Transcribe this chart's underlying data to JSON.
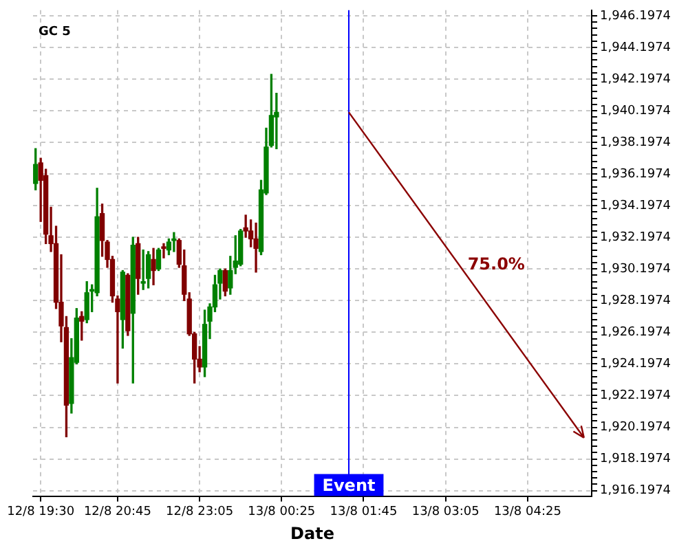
{
  "chart_data": {
    "type": "candlestick",
    "title": "GC 5",
    "xlabel": "Date",
    "categories": [
      null,
      "12/8 19:30",
      null,
      null,
      null,
      null,
      null,
      null,
      null,
      null,
      null,
      null,
      null,
      null,
      null,
      null,
      "12/8 20:45",
      null,
      null,
      null,
      null,
      null,
      null,
      null,
      null,
      null,
      null,
      null,
      null,
      null,
      null,
      null,
      "12/8 23:05",
      null,
      null,
      null,
      null,
      null,
      null,
      null,
      null,
      null,
      null,
      null,
      null,
      null,
      null,
      null,
      "13/8 00:25",
      null,
      null,
      null,
      null,
      null,
      null,
      null,
      null,
      null,
      null,
      null,
      null,
      null,
      null,
      null,
      "13/8 01:45",
      null,
      null,
      null,
      null,
      null,
      null,
      null,
      null,
      null,
      null,
      null,
      null,
      null,
      null,
      null,
      "13/8 03:05",
      null,
      null,
      null,
      null,
      null,
      null,
      null,
      null,
      null,
      null,
      null,
      null,
      null,
      null,
      null,
      "13/8 04:25",
      null,
      null,
      null,
      null,
      null,
      null,
      null,
      null,
      null,
      null,
      null,
      null
    ],
    "ohlc": [
      [
        1935.6,
        1937.8,
        1935.2,
        1936.8
      ],
      [
        1936.9,
        1937.2,
        1933.2,
        1935.8
      ],
      [
        1936.1,
        1936.5,
        1931.8,
        1932.4
      ],
      [
        1932.3,
        1934.1,
        1931.3,
        1931.8
      ],
      [
        1931.8,
        1932.9,
        1927.7,
        1928.1
      ],
      [
        1928.1,
        1931.1,
        1925.6,
        1926.6
      ],
      [
        1926.5,
        1927.2,
        1919.6,
        1921.6
      ],
      [
        1921.7,
        1925.8,
        1921.1,
        1924.6
      ],
      [
        1924.3,
        1927.7,
        1924.2,
        1927.1
      ],
      [
        1927.2,
        1927.5,
        1925.7,
        1926.9
      ],
      [
        1927.0,
        1929.4,
        1926.8,
        1928.7
      ],
      [
        1928.8,
        1929.2,
        1927.5,
        1928.9
      ],
      [
        1928.7,
        1935.3,
        1928.5,
        1933.5
      ],
      [
        1933.7,
        1934.3,
        1931.0,
        1932.0
      ],
      [
        1931.9,
        1932.0,
        1930.3,
        1930.8
      ],
      [
        1930.8,
        1931.0,
        1928.1,
        1928.5
      ],
      [
        1928.3,
        1928.5,
        1923.0,
        1927.5
      ],
      [
        1927.0,
        1930.1,
        1925.2,
        1930.0
      ],
      [
        1929.8,
        1929.9,
        1926.0,
        1926.3
      ],
      [
        1927.4,
        1932.2,
        1923.0,
        1931.7
      ],
      [
        1931.8,
        1932.2,
        1928.6,
        1929.6
      ],
      [
        1929.3,
        1931.4,
        1928.9,
        1929.4
      ],
      [
        1929.6,
        1931.3,
        1929.0,
        1931.1
      ],
      [
        1930.8,
        1931.5,
        1929.2,
        1930.1
      ],
      [
        1930.2,
        1931.5,
        1930.1,
        1931.4
      ],
      [
        1931.6,
        1931.8,
        1930.9,
        1931.5
      ],
      [
        1931.4,
        1932.1,
        1931.1,
        1931.9
      ],
      [
        1932.0,
        1932.5,
        1931.3,
        1932.1
      ],
      [
        1932.0,
        1932.1,
        1930.3,
        1930.5
      ],
      [
        1930.4,
        1931.4,
        1928.2,
        1928.6
      ],
      [
        1928.3,
        1928.7,
        1926.0,
        1926.1
      ],
      [
        1926.1,
        1926.2,
        1923.0,
        1924.5
      ],
      [
        1924.5,
        1925.3,
        1923.7,
        1924.0
      ],
      [
        1924.0,
        1927.6,
        1923.4,
        1926.7
      ],
      [
        1926.9,
        1928.0,
        1925.8,
        1927.8
      ],
      [
        1927.8,
        1929.8,
        1927.5,
        1929.2
      ],
      [
        1929.3,
        1930.2,
        1928.3,
        1930.1
      ],
      [
        1930.1,
        1930.2,
        1928.5,
        1928.8
      ],
      [
        1929.0,
        1931.0,
        1928.6,
        1930.1
      ],
      [
        1930.3,
        1932.3,
        1929.9,
        1930.7
      ],
      [
        1930.5,
        1932.7,
        1930.4,
        1932.6
      ],
      [
        1932.8,
        1933.6,
        1932.2,
        1932.6
      ],
      [
        1932.6,
        1933.3,
        1931.6,
        1932.1
      ],
      [
        1932.1,
        1933.1,
        1930.0,
        1931.5
      ],
      [
        1931.3,
        1935.8,
        1931.1,
        1935.2
      ],
      [
        1935.0,
        1939.1,
        1934.9,
        1937.9
      ],
      [
        1938.0,
        1942.5,
        1937.9,
        1939.9
      ],
      [
        1939.8,
        1941.3,
        1937.8,
        1940.1
      ],
      null,
      null,
      null,
      null,
      null,
      null,
      null,
      null,
      null,
      null,
      null,
      null,
      null,
      null,
      null,
      null,
      null,
      null,
      null,
      null,
      null,
      null,
      null,
      null,
      null,
      null,
      null,
      null,
      null,
      null,
      null,
      null,
      null,
      null,
      null,
      null,
      null,
      null,
      null,
      null,
      null,
      null,
      null,
      null,
      null,
      null,
      null,
      null,
      null,
      null,
      null,
      null,
      null,
      null,
      null,
      null,
      null,
      null,
      null,
      null,
      null
    ],
    "colors": [
      "#008000",
      "#800000",
      "#800000",
      "#800000",
      "#800000",
      "#800000",
      "#800000",
      "#008000",
      "#008000",
      "#800000",
      "#008000",
      "#008000",
      "#008000",
      "#800000",
      "#800000",
      "#800000",
      "#800000",
      "#008000",
      "#800000",
      "#008000",
      "#800000",
      "#008000",
      "#008000",
      "#800000",
      "#008000",
      "#800000",
      "#008000",
      "#008000",
      "#800000",
      "#800000",
      "#800000",
      "#800000",
      "#800000",
      "#008000",
      "#008000",
      "#008000",
      "#008000",
      "#800000",
      "#008000",
      "#008000",
      "#008000",
      "#800000",
      "#800000",
      "#800000",
      "#008000",
      "#008000",
      "#008000",
      "#008000",
      null,
      null,
      null,
      null,
      null,
      null,
      null,
      null,
      null,
      null,
      null,
      null,
      null,
      null,
      null,
      null,
      null,
      null,
      null,
      null,
      null,
      null,
      null,
      null,
      null,
      null,
      null,
      null,
      null,
      null,
      null,
      null,
      null,
      null,
      null,
      null,
      null,
      null,
      null,
      null,
      null,
      null,
      null,
      null,
      null,
      null,
      null,
      null,
      null,
      null,
      null,
      null,
      null,
      null,
      null,
      null,
      null,
      null,
      null,
      null,
      null
    ],
    "ylim": [
      1915.85,
      1946.55
    ],
    "yticks": [
      {
        "value": 1916.1974,
        "label": "1,916.1974"
      },
      {
        "value": 1916.5974,
        "label": null
      },
      {
        "value": 1916.9974,
        "label": null
      },
      {
        "value": 1917.3974,
        "label": null
      },
      {
        "value": 1917.7974,
        "label": null
      },
      {
        "value": 1918.1974,
        "label": "1,918.1974"
      },
      {
        "value": 1918.5974,
        "label": null
      },
      {
        "value": 1918.9974,
        "label": null
      },
      {
        "value": 1919.3974,
        "label": null
      },
      {
        "value": 1919.7974,
        "label": null
      },
      {
        "value": 1920.1974,
        "label": "1,920.1974"
      },
      {
        "value": 1920.5974,
        "label": null
      },
      {
        "value": 1920.9974,
        "label": null
      },
      {
        "value": 1921.3974,
        "label": null
      },
      {
        "value": 1921.7974,
        "label": null
      },
      {
        "value": 1922.1974,
        "label": "1,922.1974"
      },
      {
        "value": 1922.5974,
        "label": null
      },
      {
        "value": 1922.9974,
        "label": null
      },
      {
        "value": 1923.3974,
        "label": null
      },
      {
        "value": 1923.7974,
        "label": null
      },
      {
        "value": 1924.1974,
        "label": "1,924.1974"
      },
      {
        "value": 1924.5974,
        "label": null
      },
      {
        "value": 1924.9974,
        "label": null
      },
      {
        "value": 1925.3974,
        "label": null
      },
      {
        "value": 1925.7974,
        "label": null
      },
      {
        "value": 1926.1974,
        "label": "1,926.1974"
      },
      {
        "value": 1926.5974,
        "label": null
      },
      {
        "value": 1926.9974,
        "label": null
      },
      {
        "value": 1927.3974,
        "label": null
      },
      {
        "value": 1927.7974,
        "label": null
      },
      {
        "value": 1928.1974,
        "label": "1,928.1974"
      },
      {
        "value": 1928.5974,
        "label": null
      },
      {
        "value": 1928.9974,
        "label": null
      },
      {
        "value": 1929.3974,
        "label": null
      },
      {
        "value": 1929.7974,
        "label": null
      },
      {
        "value": 1930.1974,
        "label": "1,930.1974"
      },
      {
        "value": 1930.5974,
        "label": null
      },
      {
        "value": 1930.9974,
        "label": null
      },
      {
        "value": 1931.3974,
        "label": null
      },
      {
        "value": 1931.7974,
        "label": null
      },
      {
        "value": 1932.1974,
        "label": "1,932.1974"
      },
      {
        "value": 1932.5974,
        "label": null
      },
      {
        "value": 1932.9974,
        "label": null
      },
      {
        "value": 1933.3974,
        "label": null
      },
      {
        "value": 1933.7974,
        "label": null
      },
      {
        "value": 1934.1974,
        "label": "1,934.1974"
      },
      {
        "value": 1934.5974,
        "label": null
      },
      {
        "value": 1934.9974,
        "label": null
      },
      {
        "value": 1935.3974,
        "label": null
      },
      {
        "value": 1935.7974,
        "label": null
      },
      {
        "value": 1936.1974,
        "label": "1,936.1974"
      },
      {
        "value": 1936.5974,
        "label": null
      },
      {
        "value": 1936.9974,
        "label": null
      },
      {
        "value": 1937.3974,
        "label": null
      },
      {
        "value": 1937.7974,
        "label": null
      },
      {
        "value": 1938.1974,
        "label": "1,938.1974"
      },
      {
        "value": 1938.5974,
        "label": null
      },
      {
        "value": 1938.9974,
        "label": null
      },
      {
        "value": 1939.3974,
        "label": null
      },
      {
        "value": 1939.7974,
        "label": null
      },
      {
        "value": 1940.1974,
        "label": "1,940.1974"
      },
      {
        "value": 1940.5974,
        "label": null
      },
      {
        "value": 1940.9974,
        "label": null
      },
      {
        "value": 1941.3974,
        "label": null
      },
      {
        "value": 1941.7974,
        "label": null
      },
      {
        "value": 1942.1974,
        "label": "1,942.1974"
      },
      {
        "value": 1942.5974,
        "label": null
      },
      {
        "value": 1942.9974,
        "label": null
      },
      {
        "value": 1943.3974,
        "label": null
      },
      {
        "value": 1943.7974,
        "label": null
      },
      {
        "value": 1944.1974,
        "label": "1,944.1974"
      },
      {
        "value": 1944.5974,
        "label": null
      },
      {
        "value": 1944.9974,
        "label": null
      },
      {
        "value": 1945.3974,
        "label": null
      },
      {
        "value": 1945.7974,
        "label": null
      },
      {
        "value": 1946.1974,
        "label": "1,946.1974"
      }
    ],
    "grid": true,
    "annotations": [
      "Event",
      "75.0%"
    ]
  }
}
